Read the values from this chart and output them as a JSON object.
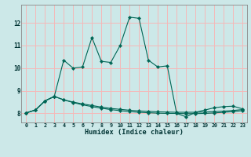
{
  "xlabel": "Humidex (Indice chaleur)",
  "background_color": "#cce8e8",
  "grid_color": "#f5b8b8",
  "line_color": "#006655",
  "xlim": [
    -0.5,
    23.5
  ],
  "ylim": [
    7.6,
    12.8
  ],
  "yticks": [
    8,
    9,
    10,
    11,
    12
  ],
  "xticks": [
    0,
    1,
    2,
    3,
    4,
    5,
    6,
    7,
    8,
    9,
    10,
    11,
    12,
    13,
    14,
    15,
    16,
    17,
    18,
    19,
    20,
    21,
    22,
    23
  ],
  "series1_x": [
    0,
    1,
    2,
    3,
    4,
    5,
    6,
    7,
    8,
    9,
    10,
    11,
    12,
    13,
    14,
    15,
    16,
    17,
    18,
    19,
    20,
    21,
    22,
    23
  ],
  "series1_y": [
    8.02,
    8.15,
    8.55,
    8.75,
    8.6,
    8.5,
    8.42,
    8.35,
    8.28,
    8.22,
    8.18,
    8.14,
    8.11,
    8.09,
    8.07,
    8.06,
    8.05,
    8.05,
    8.05,
    8.06,
    8.08,
    8.1,
    8.13,
    8.17
  ],
  "series2_x": [
    0,
    1,
    2,
    3,
    4,
    5,
    6,
    7,
    8,
    9,
    10,
    11,
    12,
    13,
    14,
    15,
    16,
    17,
    18,
    19,
    20,
    21,
    22,
    23
  ],
  "series2_y": [
    8.02,
    8.15,
    8.55,
    8.75,
    8.6,
    8.48,
    8.38,
    8.3,
    8.23,
    8.17,
    8.12,
    8.08,
    8.05,
    8.03,
    8.01,
    8.0,
    8.0,
    7.99,
    7.99,
    8.0,
    8.02,
    8.05,
    8.08,
    8.12
  ],
  "series3_x": [
    0,
    1,
    2,
    3,
    4,
    5,
    6,
    7,
    8,
    9,
    10,
    11,
    12,
    13,
    14,
    15,
    16,
    17,
    18,
    19,
    20,
    21,
    22,
    23
  ],
  "series3_y": [
    8.02,
    8.15,
    8.55,
    8.75,
    10.35,
    10.0,
    10.05,
    11.35,
    10.3,
    10.25,
    11.0,
    12.25,
    12.2,
    10.35,
    10.05,
    10.1,
    8.0,
    7.85,
    8.05,
    8.15,
    8.25,
    8.3,
    8.32,
    8.2
  ]
}
